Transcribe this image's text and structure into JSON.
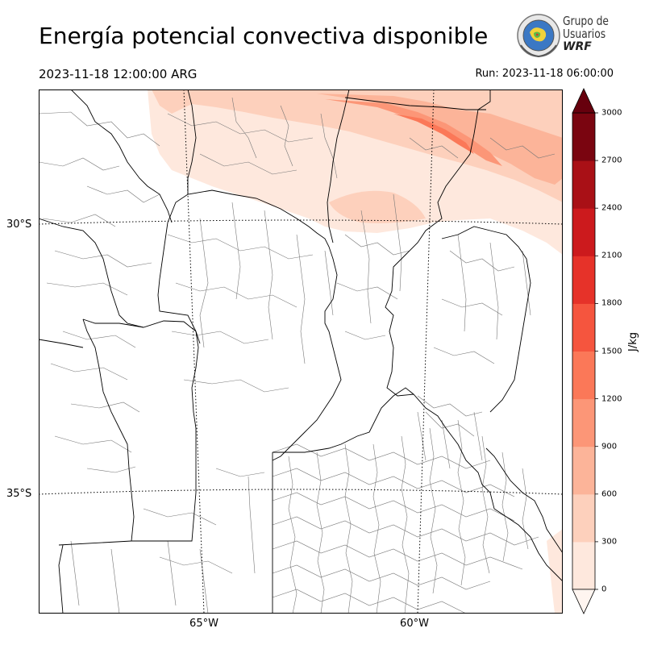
{
  "header": {
    "title": "Energía potencial convectiva disponible",
    "valid_time": "2023-11-18 12:00:00 ARG",
    "run_time": "Run: 2023-11-18 06:00:00"
  },
  "logo": {
    "line1": "Grupo de",
    "line2": "Usuarios",
    "line3": "WRF"
  },
  "map": {
    "variable": "CAPE",
    "latitude_labels": [
      "30°S",
      "35°S"
    ],
    "longitude_labels": [
      "65°W",
      "60°W"
    ],
    "colors": {
      "land": "#ffffff",
      "province_border": "#000000",
      "department_border": "#777777",
      "graticule": "#000000"
    }
  },
  "colorbar": {
    "unit": "J/kg",
    "ticks": [
      "0",
      "300",
      "600",
      "900",
      "1200",
      "1500",
      "1800",
      "2100",
      "2400",
      "2700",
      "3000"
    ],
    "colors": [
      "#fee8dd",
      "#fdd0bc",
      "#fcb499",
      "#fc9677",
      "#fb7858",
      "#f5553e",
      "#e63229",
      "#cc1a1d",
      "#a91016",
      "#7a0510"
    ],
    "extend_min_color": "#fff5f0",
    "extend_max_color": "#67000d"
  }
}
